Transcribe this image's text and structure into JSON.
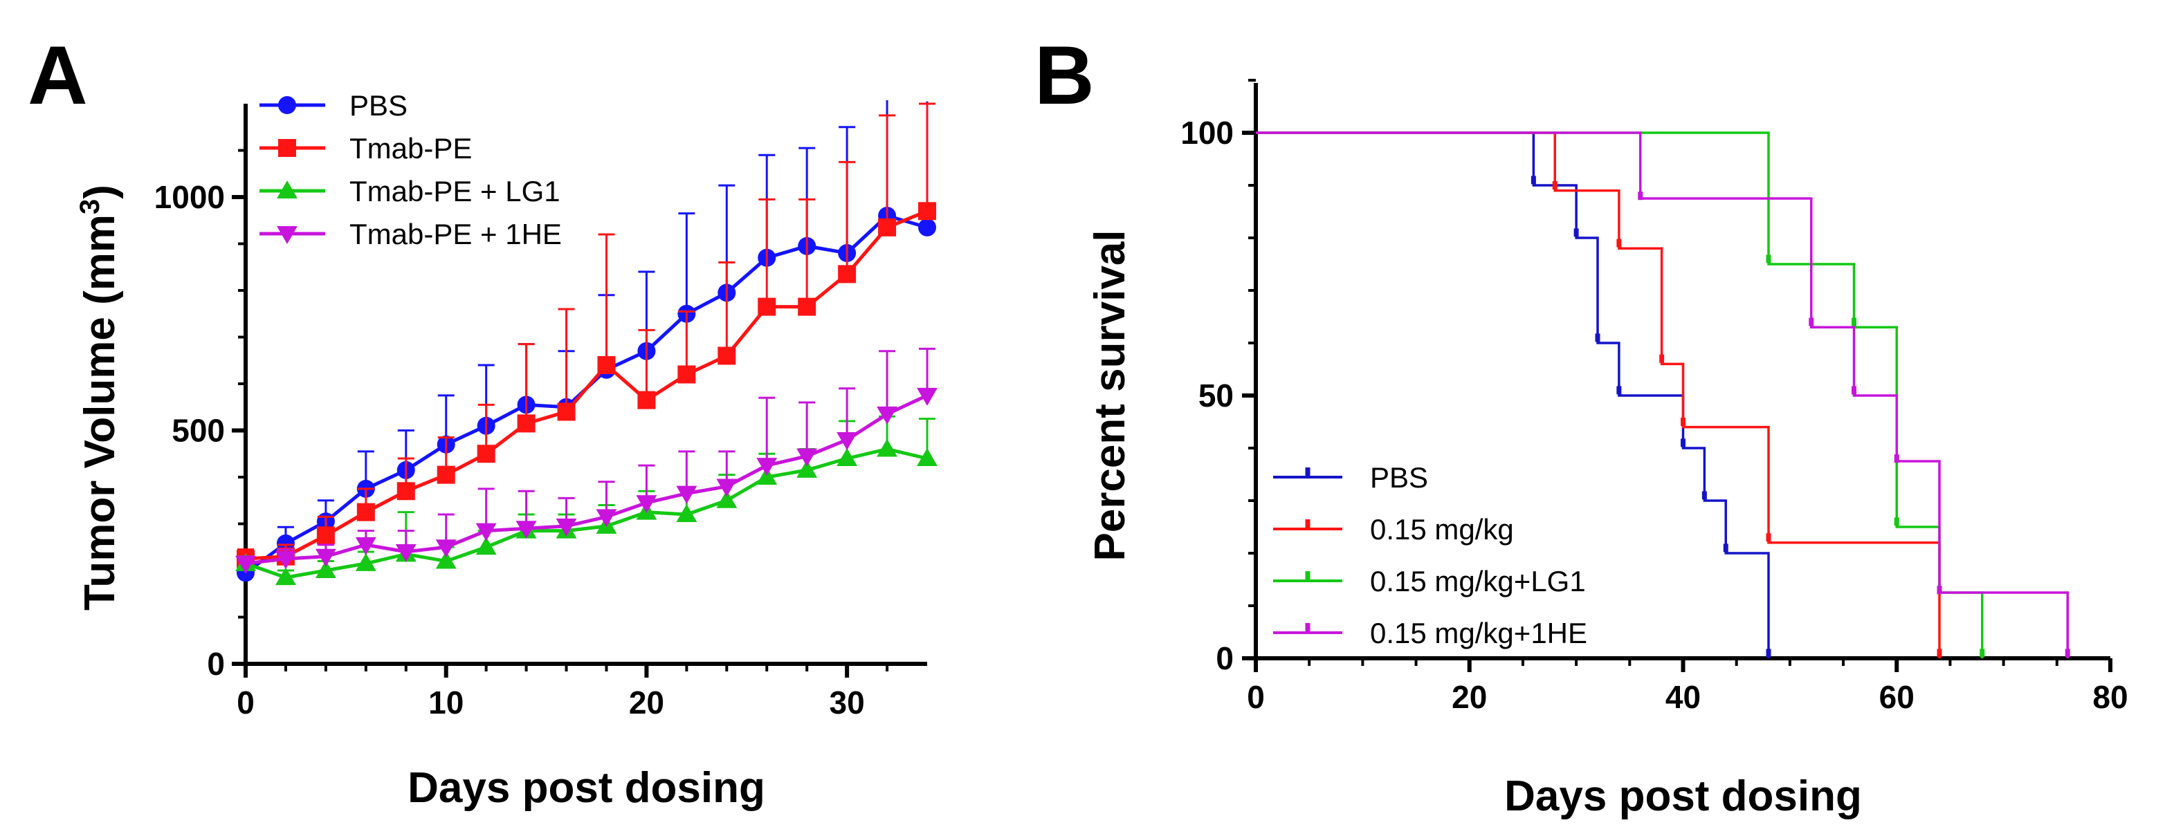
{
  "chart_data": [
    {
      "panel": "A",
      "type": "line",
      "xlabel": "Days post dosing",
      "ylabel": "Tumor Volume  (mm",
      "ylabel_sup": "3",
      "ylabel_close": ")",
      "xlim": [
        0,
        34
      ],
      "ylim": [
        0,
        1200
      ],
      "xticks": [
        0,
        10,
        20,
        30
      ],
      "yticks": [
        0,
        500,
        1000
      ],
      "legend_position": "top-left",
      "x": [
        0,
        2,
        4,
        6,
        8,
        10,
        12,
        14,
        16,
        18,
        20,
        22,
        24,
        26,
        28,
        30,
        32,
        34
      ],
      "series": [
        {
          "name": "PBS",
          "color": "#1414ff",
          "marker": "circle",
          "values": [
            195,
            258,
            305,
            375,
            415,
            470,
            510,
            555,
            550,
            630,
            670,
            750,
            795,
            870,
            895,
            880,
            960,
            935
          ],
          "errors": [
            30,
            35,
            45,
            80,
            85,
            105,
            130,
            130,
            120,
            160,
            170,
            215,
            230,
            220,
            210,
            270,
            250,
            270
          ]
        },
        {
          "name": "Tmab-PE",
          "color": "#ff1414",
          "marker": "square",
          "values": [
            225,
            230,
            275,
            325,
            370,
            405,
            450,
            515,
            540,
            640,
            565,
            620,
            660,
            765,
            765,
            835,
            935,
            970
          ],
          "errors": [
            20,
            25,
            40,
            50,
            70,
            80,
            105,
            170,
            220,
            280,
            150,
            135,
            200,
            230,
            230,
            240,
            240,
            230
          ]
        },
        {
          "name": "Tmab-PE + LG1",
          "color": "#14c814",
          "marker": "triangle-up",
          "values": [
            215,
            185,
            200,
            215,
            235,
            220,
            250,
            285,
            285,
            295,
            325,
            320,
            350,
            400,
            415,
            440,
            460,
            440
          ],
          "errors": [
            15,
            15,
            20,
            25,
            90,
            30,
            35,
            35,
            35,
            45,
            45,
            55,
            55,
            50,
            45,
            80,
            70,
            85
          ]
        },
        {
          "name": "Tmab-PE + 1HE",
          "color": "#c814dc",
          "marker": "triangle-down",
          "values": [
            215,
            225,
            230,
            255,
            240,
            250,
            285,
            290,
            295,
            315,
            345,
            365,
            380,
            425,
            445,
            480,
            535,
            575
          ],
          "errors": [
            15,
            20,
            25,
            30,
            45,
            70,
            90,
            80,
            60,
            75,
            80,
            90,
            75,
            145,
            115,
            110,
            135,
            100
          ]
        }
      ]
    },
    {
      "panel": "B",
      "type": "line",
      "subtype": "kaplan-meier",
      "xlabel": "Days post dosing",
      "ylabel": "Percent survival",
      "xlim": [
        0,
        80
      ],
      "ylim": [
        0,
        100
      ],
      "xticks": [
        0,
        20,
        40,
        60,
        80
      ],
      "yticks": [
        0,
        50,
        100
      ],
      "legend_position": "bottom-left",
      "series": [
        {
          "name": "PBS",
          "color": "#1414c8",
          "steps": [
            [
              0,
              100
            ],
            [
              26,
              90
            ],
            [
              30,
              80
            ],
            [
              32,
              60
            ],
            [
              34,
              50
            ],
            [
              40,
              40
            ],
            [
              42,
              30
            ],
            [
              44,
              20
            ],
            [
              48,
              0
            ]
          ],
          "censor": [
            [
              26,
              91
            ],
            [
              30,
              81
            ],
            [
              32,
              61
            ],
            [
              34,
              51
            ],
            [
              40,
              41
            ],
            [
              42,
              31
            ],
            [
              44,
              21
            ],
            [
              48,
              1
            ]
          ]
        },
        {
          "name": "0.15 mg/kg",
          "color": "#ff1414",
          "steps": [
            [
              0,
              100
            ],
            [
              28,
              89
            ],
            [
              34,
              78
            ],
            [
              38,
              56
            ],
            [
              40,
              44
            ],
            [
              48,
              22
            ],
            [
              64,
              0
            ]
          ],
          "censor": [
            [
              28,
              90
            ],
            [
              34,
              79
            ],
            [
              38,
              57
            ],
            [
              40,
              45
            ],
            [
              48,
              23
            ],
            [
              64,
              1
            ]
          ]
        },
        {
          "name": "0.15 mg/kg+LG1",
          "color": "#14c814",
          "steps": [
            [
              0,
              100
            ],
            [
              48,
              75
            ],
            [
              56,
              63
            ],
            [
              60,
              25
            ],
            [
              64,
              12.5
            ],
            [
              68,
              0
            ]
          ],
          "censor": [
            [
              48,
              76
            ],
            [
              56,
              64
            ],
            [
              60,
              26
            ],
            [
              64,
              13
            ],
            [
              68,
              1
            ]
          ]
        },
        {
          "name": "0.15 mg/kg+1HE",
          "color": "#c814dc",
          "steps": [
            [
              0,
              100
            ],
            [
              36,
              87.5
            ],
            [
              52,
              63
            ],
            [
              56,
              50
            ],
            [
              60,
              37.5
            ],
            [
              64,
              12.5
            ],
            [
              76,
              0
            ]
          ],
          "censor": [
            [
              36,
              88
            ],
            [
              52,
              64
            ],
            [
              56,
              51
            ],
            [
              60,
              38
            ],
            [
              64,
              13
            ],
            [
              76,
              1
            ]
          ]
        }
      ]
    }
  ],
  "panel_labels": [
    "A",
    "B"
  ]
}
